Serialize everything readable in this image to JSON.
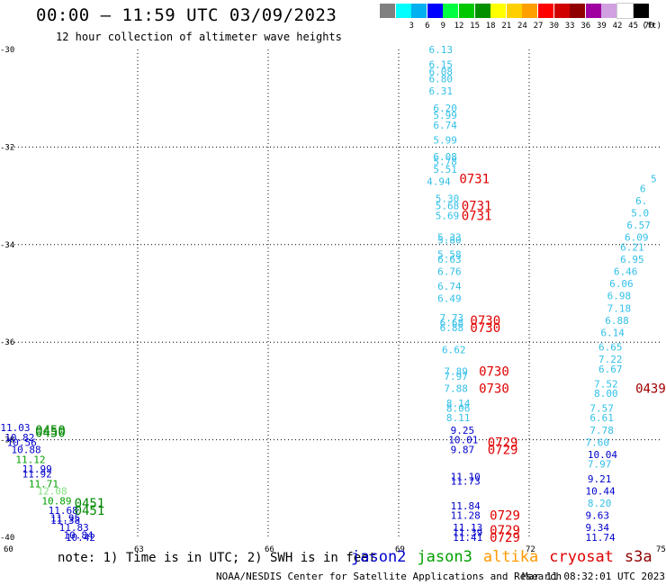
{
  "header": {
    "title": "00:00 – 11:59 UTC 03/09/2023",
    "subtitle": "12 hour collection of altimeter wave heights"
  },
  "legend": {
    "unit": "(ft)",
    "items": [
      {
        "label": "",
        "color": "#808080"
      },
      {
        "label": "3",
        "color": "#00ffff"
      },
      {
        "label": "6",
        "color": "#00b0f0"
      },
      {
        "label": "9",
        "color": "#0000ff"
      },
      {
        "label": "12",
        "color": "#00ff40"
      },
      {
        "label": "15",
        "color": "#00c800"
      },
      {
        "label": "18",
        "color": "#009000"
      },
      {
        "label": "21",
        "color": "#ffff00"
      },
      {
        "label": "24",
        "color": "#ffd000"
      },
      {
        "label": "27",
        "color": "#ffa000"
      },
      {
        "label": "30",
        "color": "#ff0000"
      },
      {
        "label": "33",
        "color": "#d00000"
      },
      {
        "label": "36",
        "color": "#900000"
      },
      {
        "label": "39",
        "color": "#a000a0"
      },
      {
        "label": "42",
        "color": "#d0a0e0"
      },
      {
        "label": "45",
        "color": "#ffffff"
      },
      {
        "label": "70",
        "color": "#000000"
      }
    ]
  },
  "axes": {
    "x_ticks": [
      "60",
      "63",
      "66",
      "69",
      "72",
      "75"
    ],
    "y_ticks": [
      "-30",
      "-32",
      "-34",
      "-36",
      "-38",
      "-40"
    ]
  },
  "chart_data": {
    "type": "scatter",
    "xlim": [
      60,
      75
    ],
    "ylim": [
      -40,
      -30
    ],
    "grid": true,
    "tick_colors": {
      "cyan": "#33c0e8",
      "blue": "#0000cc",
      "green": "#00a000",
      "lightgreen": "#80e080"
    },
    "points": [
      {
        "x": 69.9,
        "y": -30.0,
        "v": "6.13",
        "c": "cyan"
      },
      {
        "x": 69.9,
        "y": -30.3,
        "v": "6.15",
        "c": "cyan"
      },
      {
        "x": 69.9,
        "y": -30.45,
        "v": "6.08",
        "c": "cyan"
      },
      {
        "x": 69.9,
        "y": -30.6,
        "v": "6.80",
        "c": "cyan"
      },
      {
        "x": 69.9,
        "y": -30.85,
        "v": "6.31",
        "c": "cyan"
      },
      {
        "x": 70.0,
        "y": -31.2,
        "v": "6.20",
        "c": "cyan"
      },
      {
        "x": 70.0,
        "y": -31.35,
        "v": "5.99",
        "c": "cyan"
      },
      {
        "x": 70.0,
        "y": -31.55,
        "v": "6.74",
        "c": "cyan"
      },
      {
        "x": 70.0,
        "y": -31.85,
        "v": "5.99",
        "c": "cyan"
      },
      {
        "x": 70.0,
        "y": -32.2,
        "v": "6.08",
        "c": "cyan"
      },
      {
        "x": 70.0,
        "y": -32.3,
        "v": "5.78",
        "c": "cyan"
      },
      {
        "x": 70.0,
        "y": -32.45,
        "v": "5.51",
        "c": "cyan"
      },
      {
        "x": 69.85,
        "y": -32.7,
        "v": "4.94",
        "c": "cyan"
      },
      {
        "x": 70.05,
        "y": -33.05,
        "v": "5.30",
        "c": "cyan"
      },
      {
        "x": 70.05,
        "y": -33.2,
        "v": "5.68",
        "c": "cyan"
      },
      {
        "x": 70.05,
        "y": -33.4,
        "v": "5.69",
        "c": "cyan"
      },
      {
        "x": 70.1,
        "y": -33.85,
        "v": "5.33",
        "c": "cyan"
      },
      {
        "x": 70.1,
        "y": -33.9,
        "v": "5.80",
        "c": "cyan"
      },
      {
        "x": 70.1,
        "y": -34.2,
        "v": "5.58",
        "c": "cyan"
      },
      {
        "x": 70.1,
        "y": -34.3,
        "v": "6.63",
        "c": "cyan"
      },
      {
        "x": 70.1,
        "y": -34.55,
        "v": "6.76",
        "c": "cyan"
      },
      {
        "x": 70.1,
        "y": -34.85,
        "v": "6.74",
        "c": "cyan"
      },
      {
        "x": 70.1,
        "y": -35.1,
        "v": "6.49",
        "c": "cyan"
      },
      {
        "x": 70.15,
        "y": -35.5,
        "v": "7.73",
        "c": "cyan"
      },
      {
        "x": 70.15,
        "y": -35.6,
        "v": "6.68",
        "c": "cyan"
      },
      {
        "x": 70.15,
        "y": -35.7,
        "v": "6.88",
        "c": "cyan"
      },
      {
        "x": 70.2,
        "y": -36.15,
        "v": "6.62",
        "c": "cyan"
      },
      {
        "x": 70.25,
        "y": -36.6,
        "v": "7.89",
        "c": "cyan"
      },
      {
        "x": 70.25,
        "y": -36.7,
        "v": "7.97",
        "c": "cyan"
      },
      {
        "x": 70.25,
        "y": -36.95,
        "v": "7.88",
        "c": "cyan"
      },
      {
        "x": 70.3,
        "y": -37.25,
        "v": "8.14",
        "c": "cyan"
      },
      {
        "x": 70.3,
        "y": -37.35,
        "v": "8.06",
        "c": "cyan"
      },
      {
        "x": 70.3,
        "y": -37.55,
        "v": "8.11",
        "c": "cyan"
      },
      {
        "x": 70.4,
        "y": -37.8,
        "v": "9.25",
        "c": "blue"
      },
      {
        "x": 70.35,
        "y": -38.0,
        "v": "10.01",
        "c": "blue"
      },
      {
        "x": 70.4,
        "y": -38.2,
        "v": "9.87",
        "c": "blue"
      },
      {
        "x": 70.4,
        "y": -38.75,
        "v": "11.10",
        "c": "blue"
      },
      {
        "x": 70.4,
        "y": -38.85,
        "v": "11.73",
        "c": "blue"
      },
      {
        "x": 70.4,
        "y": -39.35,
        "v": "11.84",
        "c": "blue"
      },
      {
        "x": 70.4,
        "y": -39.55,
        "v": "11.28",
        "c": "blue"
      },
      {
        "x": 70.45,
        "y": -39.8,
        "v": "11.13",
        "c": "blue"
      },
      {
        "x": 70.45,
        "y": -39.9,
        "v": "11.39",
        "c": "blue"
      },
      {
        "x": 70.45,
        "y": -40.0,
        "v": "11.41",
        "c": "blue"
      },
      {
        "x": 73.5,
        "y": -40.0,
        "v": "11.74",
        "c": "blue"
      },
      {
        "x": 73.5,
        "y": -39.8,
        "v": "9.34",
        "c": "blue"
      },
      {
        "x": 73.5,
        "y": -39.55,
        "v": "9.63",
        "c": "blue"
      },
      {
        "x": 73.55,
        "y": -39.3,
        "v": "8.20",
        "c": "cyan"
      },
      {
        "x": 73.5,
        "y": -39.05,
        "v": "10.44",
        "c": "blue"
      },
      {
        "x": 73.55,
        "y": -38.8,
        "v": "9.21",
        "c": "blue"
      },
      {
        "x": 73.55,
        "y": -38.5,
        "v": "7.97",
        "c": "cyan"
      },
      {
        "x": 73.55,
        "y": -38.3,
        "v": "10.04",
        "c": "blue"
      },
      {
        "x": 73.5,
        "y": -38.05,
        "v": "7.60",
        "c": "cyan"
      },
      {
        "x": 73.6,
        "y": -37.8,
        "v": "7.78",
        "c": "cyan"
      },
      {
        "x": 73.6,
        "y": -37.55,
        "v": "6.61",
        "c": "cyan"
      },
      {
        "x": 73.6,
        "y": -37.35,
        "v": "7.57",
        "c": "cyan"
      },
      {
        "x": 73.7,
        "y": -37.05,
        "v": "8.00",
        "c": "cyan"
      },
      {
        "x": 73.7,
        "y": -36.85,
        "v": "7.52",
        "c": "cyan"
      },
      {
        "x": 73.8,
        "y": -36.55,
        "v": "6.67",
        "c": "cyan"
      },
      {
        "x": 73.8,
        "y": -36.35,
        "v": "7.22",
        "c": "cyan"
      },
      {
        "x": 73.8,
        "y": -36.1,
        "v": "6.65",
        "c": "cyan"
      },
      {
        "x": 73.85,
        "y": -35.8,
        "v": "6.14",
        "c": "cyan"
      },
      {
        "x": 73.95,
        "y": -35.55,
        "v": "6.88",
        "c": "cyan"
      },
      {
        "x": 74.0,
        "y": -35.3,
        "v": "7.18",
        "c": "cyan"
      },
      {
        "x": 74.0,
        "y": -35.05,
        "v": "6.98",
        "c": "cyan"
      },
      {
        "x": 74.05,
        "y": -34.8,
        "v": "6.06",
        "c": "cyan"
      },
      {
        "x": 74.15,
        "y": -34.55,
        "v": "6.46",
        "c": "cyan"
      },
      {
        "x": 74.3,
        "y": -34.3,
        "v": "6.95",
        "c": "cyan"
      },
      {
        "x": 74.3,
        "y": -34.05,
        "v": "6.21",
        "c": "cyan"
      },
      {
        "x": 74.4,
        "y": -33.85,
        "v": "6.09",
        "c": "cyan"
      },
      {
        "x": 74.45,
        "y": -33.6,
        "v": "6.57",
        "c": "cyan"
      },
      {
        "x": 74.55,
        "y": -33.35,
        "v": "5.0",
        "c": "cyan"
      },
      {
        "x": 74.65,
        "y": -33.1,
        "v": "6.",
        "c": "cyan"
      },
      {
        "x": 74.75,
        "y": -32.85,
        "v": "6",
        "c": "cyan"
      },
      {
        "x": 75.0,
        "y": -32.65,
        "v": "5",
        "c": "cyan"
      },
      {
        "x": 60.05,
        "y": -37.75,
        "v": "11.03",
        "c": "blue"
      },
      {
        "x": 60.15,
        "y": -37.95,
        "v": "10.82",
        "c": "blue"
      },
      {
        "x": 60.2,
        "y": -38.05,
        "v": "10.56",
        "c": "blue"
      },
      {
        "x": 60.3,
        "y": -38.2,
        "v": "10.88",
        "c": "blue"
      },
      {
        "x": 60.4,
        "y": -38.4,
        "v": "11.12",
        "c": "green"
      },
      {
        "x": 60.55,
        "y": -38.6,
        "v": "11.99",
        "c": "blue"
      },
      {
        "x": 60.55,
        "y": -38.7,
        "v": "11.92",
        "c": "blue"
      },
      {
        "x": 60.7,
        "y": -38.9,
        "v": "11.71",
        "c": "green"
      },
      {
        "x": 60.9,
        "y": -39.05,
        "v": "12.08",
        "c": "lightgreen"
      },
      {
        "x": 61.0,
        "y": -39.25,
        "v": "10.89",
        "c": "green"
      },
      {
        "x": 61.15,
        "y": -39.45,
        "v": "11.68",
        "c": "blue"
      },
      {
        "x": 61.2,
        "y": -39.6,
        "v": "11.95",
        "c": "blue"
      },
      {
        "x": 61.2,
        "y": -39.65,
        "v": "11.38",
        "c": "blue"
      },
      {
        "x": 61.4,
        "y": -39.8,
        "v": "11.83",
        "c": "blue"
      },
      {
        "x": 61.5,
        "y": -39.95,
        "v": "10.84",
        "c": "blue"
      },
      {
        "x": 61.55,
        "y": -40.0,
        "v": "10.42",
        "c": "blue"
      }
    ],
    "times": [
      {
        "x": 70.6,
        "y": -32.65,
        "v": "0731",
        "c": "#e00000"
      },
      {
        "x": 70.65,
        "y": -33.2,
        "v": "0731",
        "c": "#e00000"
      },
      {
        "x": 70.65,
        "y": -33.4,
        "v": "0731",
        "c": "#e00000"
      },
      {
        "x": 70.85,
        "y": -35.55,
        "v": "0730",
        "c": "#e00000"
      },
      {
        "x": 70.85,
        "y": -35.7,
        "v": "0730",
        "c": "#e00000"
      },
      {
        "x": 71.05,
        "y": -36.6,
        "v": "0730",
        "c": "#e00000"
      },
      {
        "x": 71.05,
        "y": -36.95,
        "v": "0730",
        "c": "#e00000"
      },
      {
        "x": 71.25,
        "y": -38.05,
        "v": "0729",
        "c": "#e00000"
      },
      {
        "x": 71.25,
        "y": -38.2,
        "v": "0729",
        "c": "#e00000"
      },
      {
        "x": 71.3,
        "y": -39.55,
        "v": "0729",
        "c": "#e00000"
      },
      {
        "x": 71.3,
        "y": -39.85,
        "v": "0729",
        "c": "#e00000"
      },
      {
        "x": 71.3,
        "y": -40.0,
        "v": "0729",
        "c": "#e00000"
      },
      {
        "x": 74.65,
        "y": -36.95,
        "v": "0439",
        "c": "#a00000"
      },
      {
        "x": 60.85,
        "y": -37.8,
        "v": "0450",
        "c": "#008800"
      },
      {
        "x": 60.85,
        "y": -37.85,
        "v": "0450",
        "c": "#008800"
      },
      {
        "x": 61.75,
        "y": -39.3,
        "v": "0451",
        "c": "#008800"
      },
      {
        "x": 61.75,
        "y": -39.45,
        "v": "0451",
        "c": "#008800"
      }
    ]
  },
  "footer": {
    "note": "note: 1) Time is in UTC; 2) SWH is in feet",
    "satellites": [
      {
        "name": "jason2",
        "color": "#0000cc"
      },
      {
        "name": "jason3",
        "color": "#00a000"
      },
      {
        "name": "altika",
        "color": "#ff9900"
      },
      {
        "name": "cryosat",
        "color": "#e00000"
      },
      {
        "name": "s3a",
        "color": "#900000"
      }
    ],
    "credit": "NOAA/NESDIS Center for Satellite Applications and Research",
    "timestamp": "Mar 11 08:32:01 UTC 2023"
  }
}
